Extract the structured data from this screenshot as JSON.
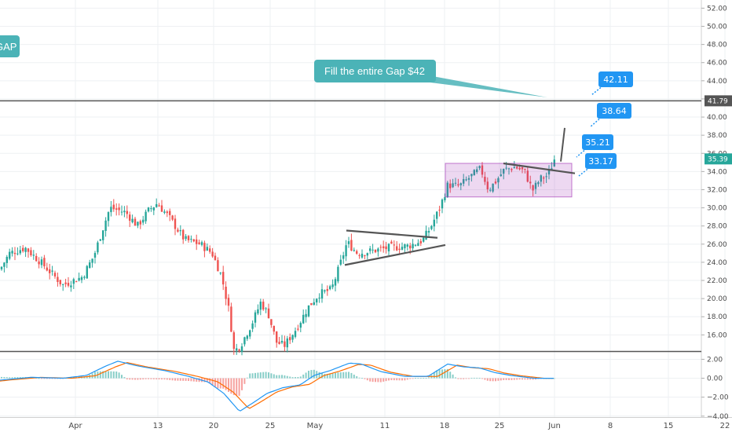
{
  "chart_data": {
    "type": "candlestick",
    "price_axis": {
      "ticks": [
        "52.00",
        "50.00",
        "48.00",
        "46.00",
        "44.00",
        "42.00",
        "40.00",
        "38.00",
        "36.00",
        "34.00",
        "32.00",
        "30.00",
        "28.00",
        "26.00",
        "24.00",
        "22.00",
        "20.00",
        "18.00",
        "16.00"
      ],
      "ylim": [
        14.3,
        52.9
      ]
    },
    "macd_axis": {
      "ticks": [
        "2.00",
        "0.00",
        "−2.00",
        "−4.00"
      ],
      "ylim": [
        -4.1,
        2.7
      ]
    },
    "time_axis": {
      "ticks": [
        "Apr",
        "13",
        "20",
        "25",
        "May",
        "11",
        "18",
        "25",
        "Jun",
        "8",
        "15",
        "22"
      ]
    },
    "price_tags": [
      {
        "label": "41.79",
        "value": 41.79,
        "style": "level",
        "color": "#555555",
        "text_color": "#ffffff"
      },
      {
        "label": "35.39",
        "value": 35.39,
        "style": "last",
        "color": "#26a69a",
        "text_color": "#ffffff"
      }
    ],
    "horizontal_levels": [
      41.79
    ],
    "annotations": {
      "gap_partial": "GAP",
      "fill_gap_note": "Fill the entire Gap $42",
      "targets": [
        "42.11",
        "38.64",
        "35.21",
        "33.17"
      ]
    },
    "colors": {
      "up": "#26a69a",
      "down": "#ef5350",
      "note": "#4bb3b7",
      "target": "#2196f3",
      "rectangle": "#9c27b0",
      "trendline": "#555555",
      "macd_line": "#2196f3",
      "signal_line": "#ff6d00"
    }
  }
}
